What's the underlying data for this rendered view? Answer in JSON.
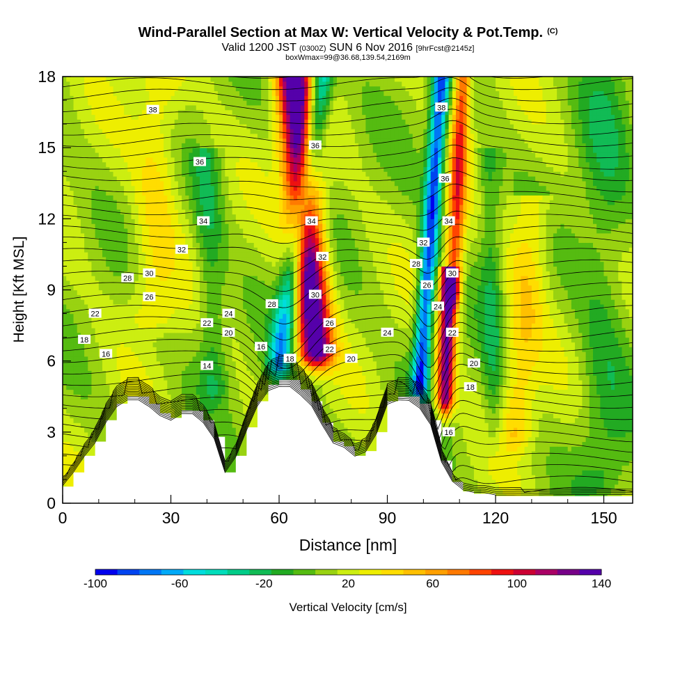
{
  "title": {
    "main": "Wind-Parallel Section at Max W: Vertical Velocity & Pot.Temp.",
    "copyright": "(C)",
    "valid_prefix": "Valid 1200 JST",
    "valid_utc": "(0300Z)",
    "valid_date": "SUN 6 Nov 2016",
    "forecast": "[9hrFcst@2145z]",
    "boxwmax": "boxWmax=99@36.68,139.54,2169m"
  },
  "colors": {
    "terrain": "#ffffff",
    "contour": "#000000",
    "scale": [
      "#0000ee",
      "#0044f0",
      "#0077f5",
      "#00aaf8",
      "#00dddd",
      "#00ddbb",
      "#00cc88",
      "#11bb55",
      "#22aa22",
      "#55bb11",
      "#99d211",
      "#ccee11",
      "#eeee00",
      "#ffdd00",
      "#ffc000",
      "#ffa000",
      "#ff7a00",
      "#ff4400",
      "#ee1111",
      "#cc0033",
      "#aa0066",
      "#770088",
      "#5500aa"
    ]
  },
  "chart_data": {
    "type": "heatmap",
    "xlabel": "Distance [nm]",
    "ylabel": "Height [Kft MSL]",
    "xlim": [
      0,
      158
    ],
    "ylim": [
      0,
      18
    ],
    "xticks": [
      0,
      30,
      60,
      90,
      120,
      150
    ],
    "yticks": [
      0,
      3,
      6,
      9,
      12,
      15,
      18
    ],
    "colorbar": {
      "label": "Vertical Velocity [cm/s]",
      "min": -100,
      "max": 140,
      "step": 10,
      "tick_labels": [
        -100,
        -60,
        -20,
        20,
        60,
        100,
        140
      ]
    },
    "terrain_profile": {
      "x": [
        0,
        3,
        6,
        9,
        12,
        15,
        18,
        21,
        24,
        27,
        30,
        33,
        36,
        39,
        42,
        45,
        48,
        51,
        54,
        57,
        60,
        63,
        66,
        69,
        72,
        75,
        78,
        81,
        84,
        87,
        90,
        93,
        96,
        99,
        102,
        105,
        108,
        111,
        114,
        117,
        120,
        123,
        126,
        129,
        132,
        135,
        138,
        141,
        144,
        147,
        150,
        153,
        156,
        158
      ],
      "height_kft": [
        0.7,
        1.3,
        2.0,
        2.6,
        3.5,
        4.2,
        4.5,
        4.5,
        4.2,
        3.8,
        3.6,
        3.9,
        3.9,
        3.5,
        2.8,
        1.3,
        2.0,
        3.2,
        4.3,
        5.0,
        5.2,
        5.2,
        4.8,
        4.3,
        3.4,
        2.6,
        2.4,
        2.0,
        2.2,
        3.0,
        4.3,
        4.5,
        4.5,
        4.2,
        3.5,
        1.8,
        0.9,
        0.5,
        0.4,
        0.4,
        0.3,
        0.3,
        0.3,
        0.3,
        0.3,
        0.3,
        0.3,
        0.3,
        0.3,
        0.3,
        0.3,
        0.3,
        0.3,
        0.3
      ]
    },
    "vertical_velocity_features": [
      {
        "name": "updraft",
        "x_base": 70,
        "z_base": 6.5,
        "x_top": 64,
        "z_top": 18,
        "width_nm": 6,
        "peak_cm_s": 130
      },
      {
        "name": "downdraft",
        "x_base": 60,
        "z_base": 6.0,
        "x_top": 72,
        "z_top": 18,
        "width_nm": 4,
        "peak_cm_s": -70
      },
      {
        "name": "downdraft",
        "x_base": 99,
        "z_base": 5.0,
        "x_top": 105,
        "z_top": 18,
        "width_nm": 3,
        "peak_cm_s": -95
      },
      {
        "name": "updraft",
        "x_base": 106,
        "z_base": 4.5,
        "x_top": 107,
        "z_top": 9,
        "width_nm": 3,
        "peak_cm_s": 110
      },
      {
        "name": "updraft",
        "x_base": 108,
        "z_base": 9,
        "x_top": 111,
        "z_top": 18,
        "width_nm": 3,
        "peak_cm_s": 70
      },
      {
        "name": "updraft",
        "x_base": 25,
        "z_base": 8,
        "x_top": 27,
        "z_top": 18,
        "width_nm": 8,
        "peak_cm_s": 25
      },
      {
        "name": "updraft",
        "x_base": 125,
        "z_base": 3,
        "x_top": 130,
        "z_top": 12,
        "width_nm": 7,
        "peak_cm_s": 30
      },
      {
        "name": "downdraft",
        "x_base": 120,
        "z_base": 3,
        "x_top": 118,
        "z_top": 14,
        "width_nm": 4,
        "peak_cm_s": -25
      },
      {
        "name": "downdraft",
        "x_base": 42,
        "z_base": 5,
        "x_top": 40,
        "z_top": 14,
        "width_nm": 5,
        "peak_cm_s": -25
      },
      {
        "name": "downdraft",
        "x_base": 150,
        "z_base": 1,
        "x_top": 150,
        "z_top": 18,
        "width_nm": 9,
        "peak_cm_s": -20
      }
    ],
    "potential_temperature_labels": [
      {
        "text": "38",
        "x": 25,
        "z": 16.6
      },
      {
        "text": "38",
        "x": 105,
        "z": 16.7
      },
      {
        "text": "36",
        "x": 70,
        "z": 15.1
      },
      {
        "text": "36",
        "x": 38,
        "z": 14.4
      },
      {
        "text": "36",
        "x": 106,
        "z": 13.7
      },
      {
        "text": "34",
        "x": 39,
        "z": 11.9
      },
      {
        "text": "34",
        "x": 69,
        "z": 11.9
      },
      {
        "text": "34",
        "x": 107,
        "z": 11.9
      },
      {
        "text": "32",
        "x": 33,
        "z": 10.7
      },
      {
        "text": "32",
        "x": 72,
        "z": 10.4
      },
      {
        "text": "32",
        "x": 100,
        "z": 11.0
      },
      {
        "text": "30",
        "x": 24,
        "z": 9.7
      },
      {
        "text": "30",
        "x": 70,
        "z": 8.8
      },
      {
        "text": "30",
        "x": 108,
        "z": 9.7
      },
      {
        "text": "28",
        "x": 18,
        "z": 9.5
      },
      {
        "text": "28",
        "x": 58,
        "z": 8.4
      },
      {
        "text": "28",
        "x": 98,
        "z": 10.1
      },
      {
        "text": "26",
        "x": 24,
        "z": 8.7
      },
      {
        "text": "26",
        "x": 74,
        "z": 7.6
      },
      {
        "text": "26",
        "x": 101,
        "z": 9.2
      },
      {
        "text": "24",
        "x": 46,
        "z": 8.0
      },
      {
        "text": "24",
        "x": 90,
        "z": 7.2
      },
      {
        "text": "24",
        "x": 104,
        "z": 8.3
      },
      {
        "text": "22",
        "x": 9,
        "z": 8.0
      },
      {
        "text": "22",
        "x": 40,
        "z": 7.6
      },
      {
        "text": "22",
        "x": 74,
        "z": 6.5
      },
      {
        "text": "22",
        "x": 108,
        "z": 7.2
      },
      {
        "text": "20",
        "x": 46,
        "z": 7.2
      },
      {
        "text": "20",
        "x": 80,
        "z": 6.1
      },
      {
        "text": "20",
        "x": 114,
        "z": 5.9
      },
      {
        "text": "18",
        "x": 6,
        "z": 6.9
      },
      {
        "text": "18",
        "x": 63,
        "z": 6.1
      },
      {
        "text": "18",
        "x": 113,
        "z": 4.9
      },
      {
        "text": "16",
        "x": 12,
        "z": 6.3
      },
      {
        "text": "16",
        "x": 55,
        "z": 6.6
      },
      {
        "text": "16",
        "x": 107,
        "z": 3.0
      },
      {
        "text": "14",
        "x": 40,
        "z": 5.8
      }
    ]
  }
}
